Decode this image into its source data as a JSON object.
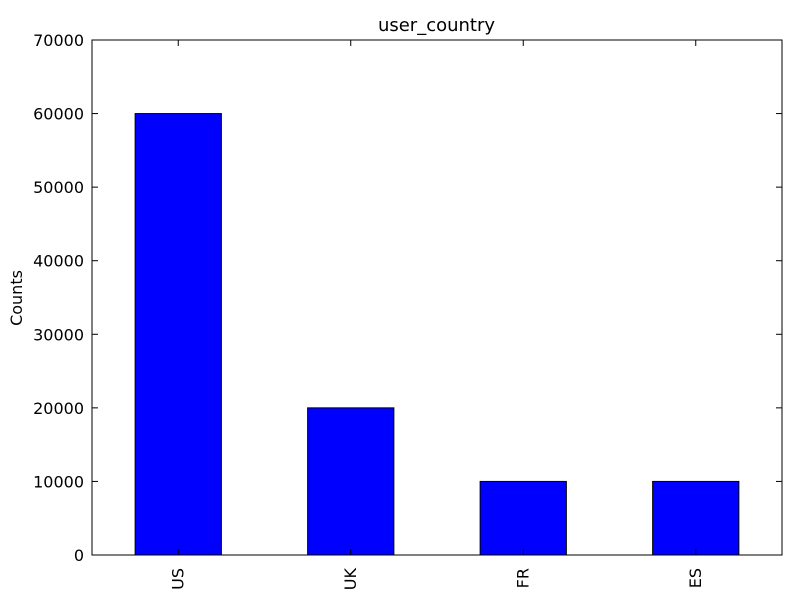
{
  "chart_data": {
    "type": "bar",
    "title": "user_country",
    "xlabel": "",
    "ylabel": "Counts",
    "categories": [
      "US",
      "UK",
      "FR",
      "ES"
    ],
    "values": [
      60000,
      20000,
      10000,
      10000
    ],
    "ylim": [
      0,
      70000
    ],
    "yticks": [
      0,
      10000,
      20000,
      30000,
      40000,
      50000,
      60000,
      70000
    ],
    "grid": false,
    "legend": false,
    "bar_color": "#0000ff",
    "edge_color": "#000000"
  }
}
